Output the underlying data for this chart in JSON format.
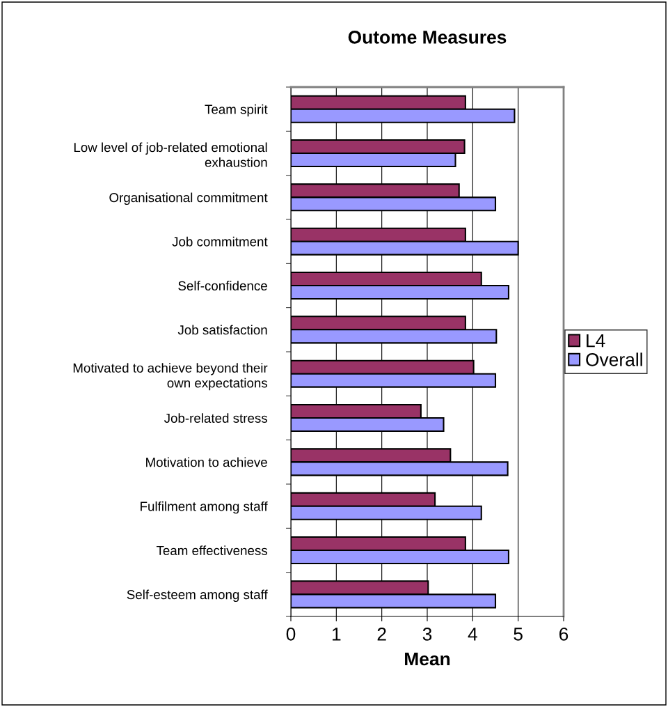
{
  "chart_data": {
    "type": "bar",
    "orientation": "horizontal",
    "title": "Outome Measures",
    "xlabel": "Mean",
    "categories": [
      "Team spirit",
      "Low level of job-related emotional\nexhaustion",
      "Organisational commitment",
      "Job commitment",
      "Self-confidence",
      "Job satisfaction",
      "Motivated to achieve beyond their\nown expectations",
      "Job-related stress",
      "Motivation to achieve",
      "Fulfilment among staff",
      "Team effectiveness",
      "Self-esteem among staff"
    ],
    "series": [
      {
        "name": "L4",
        "color": "#993366",
        "values": [
          3.84,
          3.82,
          3.7,
          3.84,
          4.19,
          3.84,
          4.02,
          2.86,
          3.51,
          3.17,
          3.84,
          3.02
        ]
      },
      {
        "name": "Overall",
        "color": "#9999ff",
        "values": [
          4.92,
          3.62,
          4.5,
          5.0,
          4.79,
          4.52,
          4.5,
          3.36,
          4.77,
          4.19,
          4.79,
          4.5
        ]
      }
    ],
    "xlim": [
      0,
      6
    ],
    "xticks": [
      0,
      1,
      2,
      3,
      4,
      5,
      6
    ],
    "grid": "x",
    "legend": "right"
  }
}
